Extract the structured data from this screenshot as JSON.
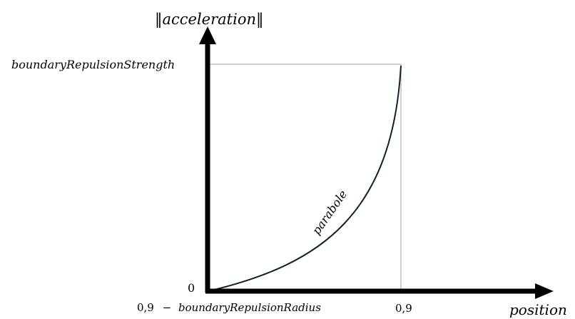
{
  "diagram": {
    "y_axis_label": "‖acceleration‖",
    "x_axis_label": "position",
    "y_tick_top": "boundaryRepulsionStrength",
    "y_tick_zero": "0",
    "x_tick_start_prefix": "0,9",
    "x_tick_start_operator": "−",
    "x_tick_start_term": "boundaryRepulsionRadius",
    "x_tick_end": "0,9",
    "curve_label": "parabole"
  },
  "colors": {
    "axis": "#000000",
    "curve": "#0d2233",
    "guide": "#bfbfbf"
  }
}
